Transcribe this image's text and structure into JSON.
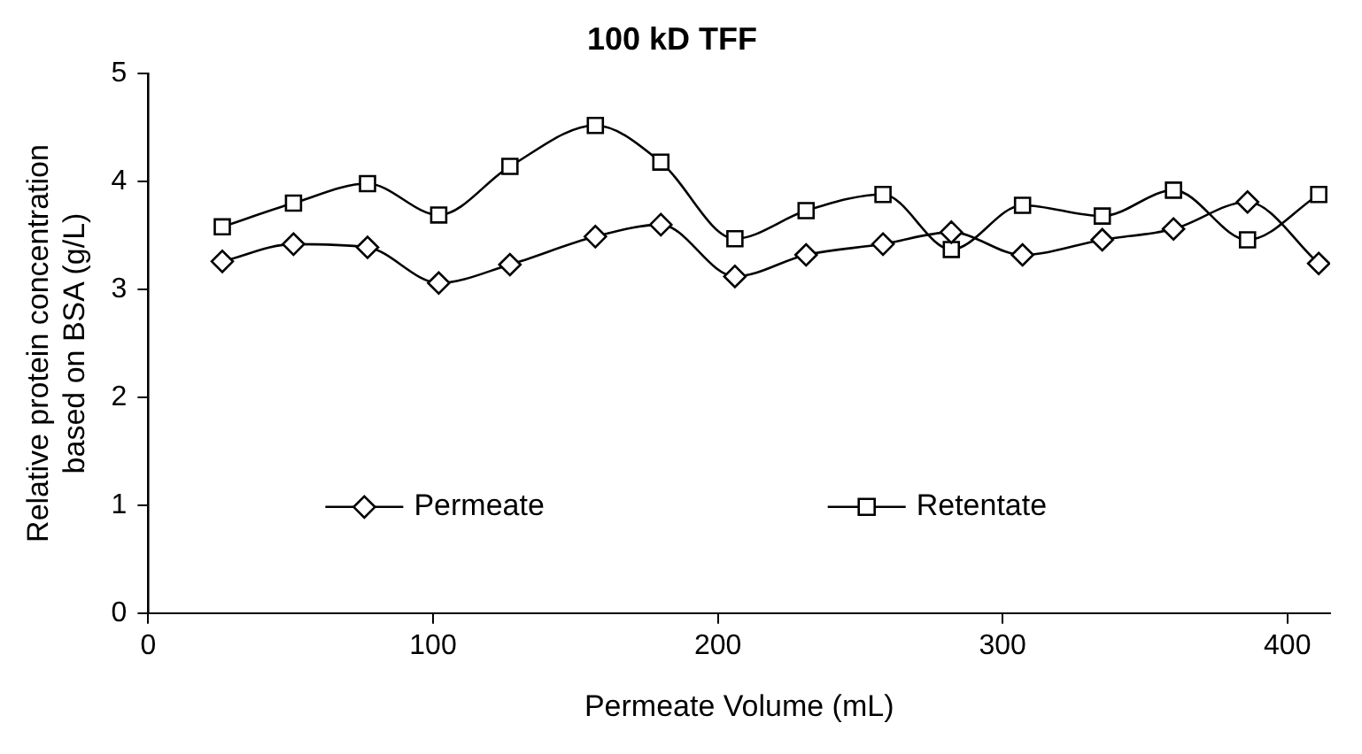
{
  "chart_data": {
    "type": "line",
    "title": "100 kD TFF",
    "xlabel": "Permeate Volume (mL)",
    "ylabel": "Relative protein concentration based on BSA (g/L)",
    "x": [
      26,
      51,
      77,
      102,
      127,
      157,
      180,
      206,
      231,
      258,
      282,
      307,
      335,
      360,
      386,
      411
    ],
    "series": [
      {
        "name": "Permeate",
        "color": "#000000",
        "marker": "diamond",
        "values": [
          3.26,
          3.42,
          3.39,
          3.06,
          3.23,
          3.49,
          3.6,
          3.12,
          3.32,
          3.42,
          3.53,
          3.32,
          3.46,
          3.56,
          3.81,
          3.24
        ]
      },
      {
        "name": "Retentate",
        "color": "#000000",
        "marker": "square",
        "values": [
          3.58,
          3.8,
          3.98,
          3.69,
          4.14,
          4.52,
          4.18,
          3.47,
          3.73,
          3.88,
          3.37,
          3.78,
          3.68,
          3.92,
          3.46,
          3.88
        ]
      }
    ],
    "xlim": [
      0,
      415
    ],
    "xticks": [
      0,
      100,
      200,
      300,
      400
    ],
    "ylim": [
      0,
      5
    ],
    "yticks": [
      0,
      1,
      2,
      3,
      4,
      5
    ],
    "grid": false,
    "legend": "bottom",
    "line_style": "solid"
  }
}
